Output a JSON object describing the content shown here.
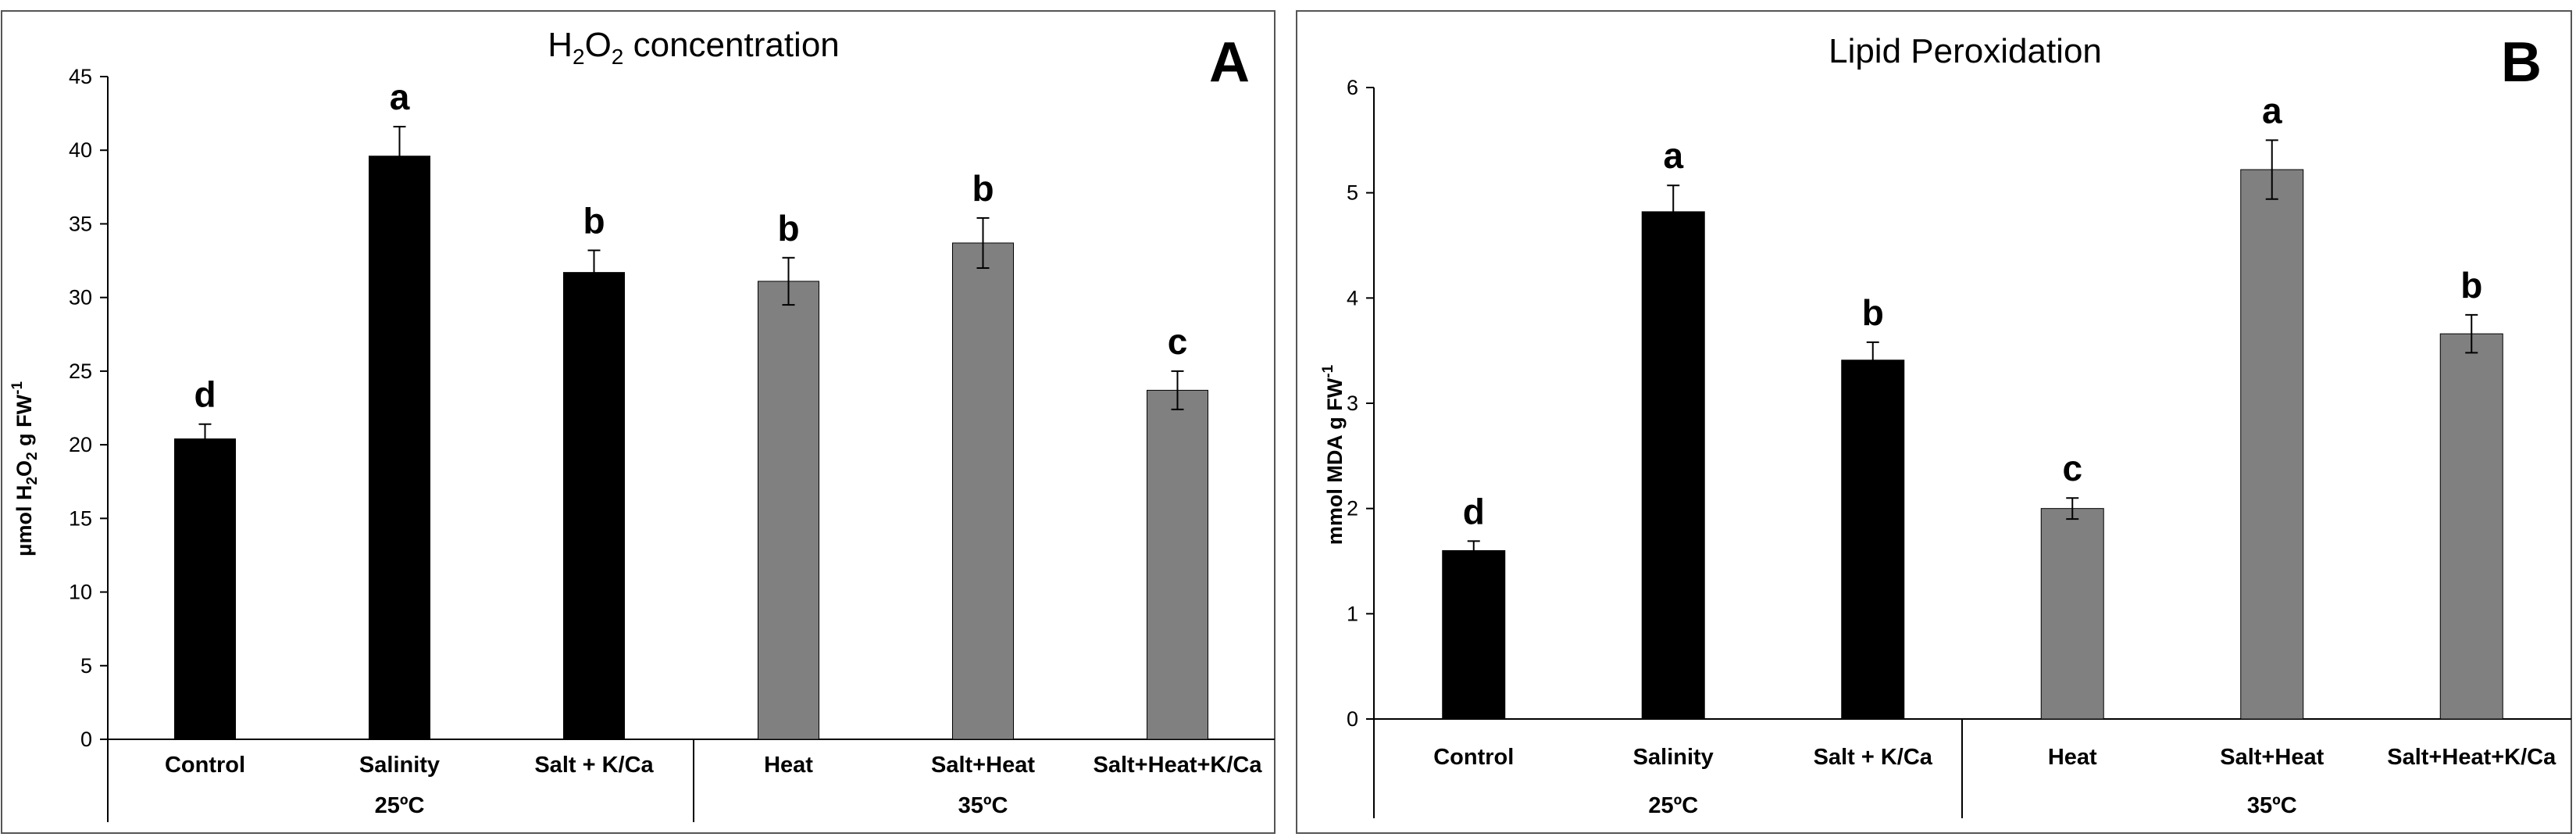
{
  "chart_data": [
    {
      "type": "bar",
      "panel_label": "A",
      "title": "H2O2 concentration",
      "title_parts": {
        "a": "H",
        "sub1": "2",
        "b": "O",
        "sub2": "2",
        "c": " concentration"
      },
      "ylabel": "μmol H2O2 g FW-1",
      "ylabel_parts": {
        "a": "μmol H",
        "sub1": "2",
        "b": "O",
        "sub2": "2",
        "c": " g FW",
        "sup": "-1"
      },
      "ylim": [
        0,
        45
      ],
      "yticks": [
        "0",
        "5",
        "10",
        "15",
        "20",
        "25",
        "30",
        "35",
        "40",
        "45"
      ],
      "categories": [
        "Control",
        "Salinity",
        "Salt + K/Ca",
        "Heat",
        "Salt+Heat",
        "Salt+Heat+K/Ca"
      ],
      "values": [
        20.4,
        39.6,
        31.7,
        31.1,
        33.7,
        23.7
      ],
      "errors": [
        1.0,
        2.0,
        1.5,
        1.6,
        1.7,
        1.3
      ],
      "letters": [
        "d",
        "a",
        "b",
        "b",
        "b",
        "c"
      ],
      "groups": [
        {
          "label": "25ºC",
          "span": 3
        },
        {
          "label": "35ºC",
          "span": 3
        }
      ],
      "bar_colors": [
        "#000000",
        "#000000",
        "#000000",
        "#808080",
        "#808080",
        "#808080"
      ]
    },
    {
      "type": "bar",
      "panel_label": "B",
      "title": "Lipid Peroxidation",
      "ylabel": "mmol MDA g FW-1",
      "ylabel_parts": {
        "a": "mmol MDA g FW",
        "sup": "-1"
      },
      "ylim": [
        0,
        6
      ],
      "yticks": [
        "0",
        "1",
        "2",
        "3",
        "4",
        "5",
        "6"
      ],
      "categories": [
        "Control",
        "Salinity",
        "Salt + K/Ca",
        "Heat",
        "Salt+Heat",
        "Salt+Heat+K/Ca"
      ],
      "values": [
        1.6,
        4.82,
        3.41,
        2.0,
        5.22,
        3.66
      ],
      "errors": [
        0.09,
        0.25,
        0.17,
        0.1,
        0.28,
        0.18
      ],
      "letters": [
        "d",
        "a",
        "b",
        "c",
        "a",
        "b"
      ],
      "groups": [
        {
          "label": "25ºC",
          "span": 3
        },
        {
          "label": "35ºC",
          "span": 3
        }
      ],
      "bar_colors": [
        "#000000",
        "#000000",
        "#000000",
        "#808080",
        "#808080",
        "#808080"
      ]
    }
  ]
}
